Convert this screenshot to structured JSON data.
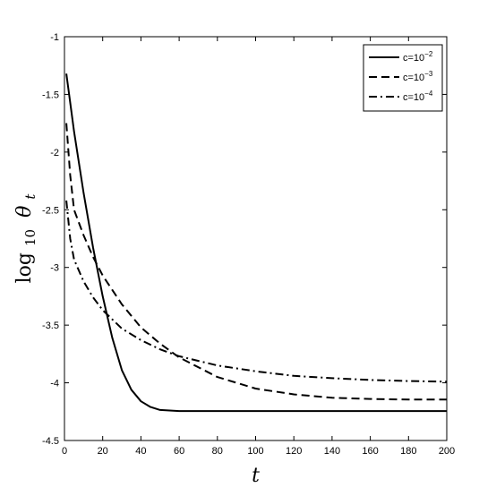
{
  "chart_data": {
    "type": "line",
    "title": "",
    "xlabel": "t",
    "ylabel": {
      "prefix": "log",
      "sub": "10",
      "var": "θ",
      "var_sub": "t"
    },
    "xlim": [
      0,
      200
    ],
    "ylim": [
      -4.5,
      -1
    ],
    "grid": false,
    "legend_position": "top-right",
    "x_ticks": [
      0,
      20,
      40,
      60,
      80,
      100,
      120,
      140,
      160,
      180,
      200
    ],
    "x_tick_labels": [
      "0",
      "20",
      "40",
      "60",
      "80",
      "100",
      "120",
      "140",
      "160",
      "180",
      "200"
    ],
    "y_ticks": [
      -4.5,
      -4,
      -3.5,
      -3,
      -2.5,
      -2,
      -1.5,
      -1
    ],
    "y_tick_labels": [
      "-4.5",
      "-4",
      "-3.5",
      "-3",
      "-2.5",
      "-2",
      "-1.5",
      "-1"
    ],
    "series": [
      {
        "name": "c=10−2",
        "legend": {
          "base": "c=10",
          "exp": "−2"
        },
        "dash": "solid",
        "x": [
          1,
          5,
          10,
          15,
          20,
          25,
          30,
          35,
          40,
          45,
          50,
          55,
          60,
          80,
          100,
          150,
          200
        ],
        "y": [
          -1.32,
          -1.82,
          -2.35,
          -2.83,
          -3.25,
          -3.61,
          -3.89,
          -4.06,
          -4.16,
          -4.21,
          -4.235,
          -4.24,
          -4.245,
          -4.245,
          -4.245,
          -4.245,
          -4.245
        ]
      },
      {
        "name": "c=10−3",
        "legend": {
          "base": "c=10",
          "exp": "−3"
        },
        "dash": "dashed",
        "x": [
          1,
          3,
          5,
          10,
          15,
          20,
          30,
          40,
          50,
          60,
          80,
          100,
          120,
          140,
          160,
          180,
          200
        ],
        "y": [
          -1.75,
          -2.2,
          -2.5,
          -2.72,
          -2.91,
          -3.07,
          -3.32,
          -3.52,
          -3.66,
          -3.78,
          -3.95,
          -4.05,
          -4.1,
          -4.13,
          -4.14,
          -4.145,
          -4.145
        ]
      },
      {
        "name": "c=10−4",
        "legend": {
          "base": "c=10",
          "exp": "−4"
        },
        "dash": "dashdot",
        "x": [
          1,
          3,
          5,
          10,
          15,
          20,
          30,
          40,
          50,
          60,
          80,
          100,
          120,
          140,
          160,
          180,
          200
        ],
        "y": [
          -2.42,
          -2.75,
          -2.93,
          -3.12,
          -3.26,
          -3.37,
          -3.53,
          -3.63,
          -3.71,
          -3.77,
          -3.85,
          -3.9,
          -3.94,
          -3.96,
          -3.975,
          -3.985,
          -3.99
        ]
      }
    ]
  }
}
